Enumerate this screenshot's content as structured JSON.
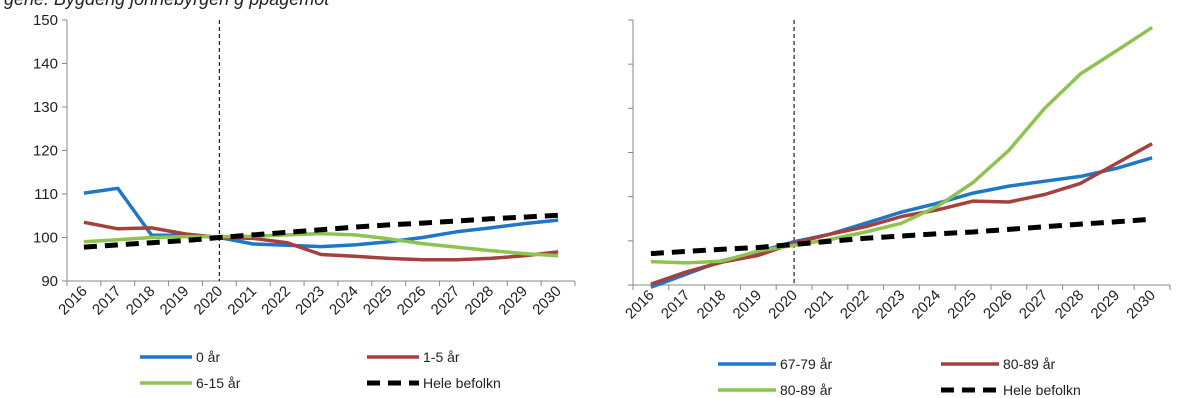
{
  "caption": "gene: Bygdeng jonnebyrgen g ppagemot",
  "chart_data": [
    {
      "type": "line",
      "x": [
        "2016",
        "2017",
        "2018",
        "2019",
        "2020",
        "2021",
        "2022",
        "2023",
        "2024",
        "2025",
        "2026",
        "2027",
        "2028",
        "2029",
        "2030"
      ],
      "ylim": [
        90,
        150
      ],
      "yticks": [
        90,
        100,
        110,
        120,
        130,
        140,
        150
      ],
      "grid": false,
      "reference_line_x": "2020",
      "legend_position": "bottom",
      "series": [
        {
          "name": "0 år",
          "color": "#1f77c9",
          "style": "solid",
          "values": [
            110.2,
            111.3,
            100.5,
            100.5,
            100.0,
            98.5,
            98.2,
            97.9,
            98.3,
            99.0,
            100.0,
            101.3,
            102.2,
            103.2,
            104.0
          ]
        },
        {
          "name": "1-5 år",
          "color": "#a5403c",
          "style": "solid",
          "values": [
            103.5,
            102.0,
            102.2,
            100.8,
            100.0,
            99.8,
            98.8,
            96.1,
            95.7,
            95.2,
            94.9,
            94.9,
            95.2,
            95.8,
            96.7
          ]
        },
        {
          "name": "6-15 år",
          "color": "#8ec34f",
          "style": "solid",
          "values": [
            99.0,
            99.5,
            100.0,
            100.2,
            100.2,
            100.3,
            100.6,
            100.9,
            100.6,
            99.7,
            98.6,
            97.8,
            97.0,
            96.3,
            95.8
          ]
        },
        {
          "name": "Hele befolkn",
          "color": "#000000",
          "style": "dashed",
          "values": [
            97.8,
            98.3,
            98.8,
            99.3,
            100.0,
            100.6,
            101.2,
            101.8,
            102.4,
            102.9,
            103.3,
            103.8,
            104.3,
            104.7,
            105.1
          ]
        }
      ]
    },
    {
      "type": "line",
      "x": [
        "2016",
        "2017",
        "2018",
        "2019",
        "2020",
        "2021",
        "2022",
        "2023",
        "2024",
        "2025",
        "2026",
        "2027",
        "2028",
        "2029",
        "2030"
      ],
      "ylim": [
        90,
        150
      ],
      "grid": false,
      "reference_line_x": "2020",
      "legend_position": "bottom",
      "series": [
        {
          "name": "67-79 år",
          "color": "#1f77c9",
          "style": "solid",
          "values": [
            89.5,
            92.5,
            95.5,
            97.5,
            99.8,
            101.5,
            104.0,
            106.5,
            108.5,
            110.8,
            112.4,
            113.5,
            114.6,
            116.4,
            118.8
          ]
        },
        {
          "name": "80-89 år",
          "color": "#a5403c",
          "style": "solid",
          "values": [
            90.2,
            93.0,
            95.2,
            96.7,
            99.5,
            101.5,
            103.2,
            105.5,
            107.0,
            109.0,
            108.8,
            110.5,
            113.0,
            117.5,
            122.0
          ]
        },
        {
          "name": "80-89 år",
          "color": "#8ec34f",
          "style": "solid",
          "values": [
            95.3,
            95.0,
            95.4,
            97.7,
            99.0,
            100.3,
            102.0,
            104.0,
            107.8,
            113.2,
            120.5,
            130.0,
            137.8,
            143.0,
            148.3
          ]
        },
        {
          "name": "Hele befolkn",
          "color": "#000000",
          "style": "dashed",
          "values": [
            97.1,
            97.6,
            98.1,
            98.5,
            99.2,
            99.9,
            100.6,
            101.1,
            101.6,
            102.0,
            102.6,
            103.2,
            103.8,
            104.3,
            104.9
          ]
        }
      ]
    }
  ]
}
